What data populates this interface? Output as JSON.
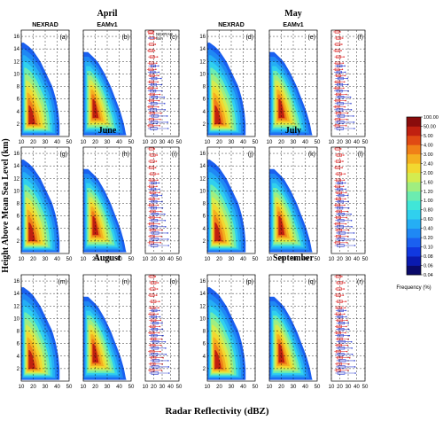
{
  "chart_data": {
    "type": "heatmap",
    "ylabel": "Height Above Mean Sea Level (km)",
    "xlabel": "Radar Reflectivity (dBZ)",
    "xlim": [
      10,
      50
    ],
    "ylim": [
      0,
      17
    ],
    "xticks": [
      "10",
      "20",
      "30",
      "40",
      "50"
    ],
    "yticks": [
      "2",
      "4",
      "6",
      "8",
      "10",
      "12",
      "14",
      "16"
    ],
    "source_labels": [
      "NEXRAD",
      "EAMv1"
    ],
    "legend": [
      {
        "name": "NEXRAD",
        "color": "#e03030"
      },
      {
        "name": "Sim",
        "color": "#3040d0"
      }
    ],
    "colorbar": {
      "title": "Frequency (%)",
      "levels": [
        "0.04",
        "0.06",
        "0.08",
        "0.10",
        "0.20",
        "0.40",
        "0.60",
        "0.80",
        "1.00",
        "1.20",
        "1.60",
        "2.00",
        "2.40",
        "3.00",
        "4.00",
        "5.00",
        "50.00",
        "100.00"
      ],
      "colors": [
        "#0a0a6a",
        "#0a1ab0",
        "#1038e0",
        "#1a60f0",
        "#1f88f4",
        "#25aef4",
        "#30d0ee",
        "#40e6d8",
        "#6cecb0",
        "#a0ee80",
        "#d4ec50",
        "#f2d830",
        "#f4b020",
        "#f08018",
        "#e04a14",
        "#c02010",
        "#8a0c0c"
      ]
    },
    "months": [
      {
        "name": "April",
        "panels": [
          "(a)",
          "(b)",
          "(c)"
        ]
      },
      {
        "name": "May",
        "panels": [
          "(d)",
          "(e)",
          "(f)"
        ]
      },
      {
        "name": "June",
        "panels": [
          "(g)",
          "(h)",
          "(i)"
        ]
      },
      {
        "name": "July",
        "panels": [
          "(j)",
          "(k)",
          "(l)"
        ]
      },
      {
        "name": "August",
        "panels": [
          "(m)",
          "(n)",
          "(o)"
        ]
      },
      {
        "name": "September",
        "panels": [
          "(p)",
          "(q)",
          "(r)"
        ]
      }
    ],
    "profiles": {
      "nexrad_top_km": 15.0,
      "eamv1_top_km": 13.5,
      "nexrad_max_dbz_at_height": [
        [
          0,
          42
        ],
        [
          2,
          42
        ],
        [
          4,
          41
        ],
        [
          6,
          39
        ],
        [
          8,
          36
        ],
        [
          10,
          31
        ],
        [
          12,
          26
        ],
        [
          14,
          19
        ],
        [
          15,
          12
        ]
      ],
      "eamv1_max_dbz_at_height": [
        [
          0,
          46
        ],
        [
          2,
          44
        ],
        [
          4,
          41
        ],
        [
          6,
          37
        ],
        [
          8,
          33
        ],
        [
          10,
          28
        ],
        [
          12,
          22
        ],
        [
          13.5,
          14
        ]
      ],
      "boxplot_heights_km": [
        1.5,
        2.5,
        3.5,
        4.5,
        5.5,
        6.5,
        7.5,
        8.5,
        9.5,
        10.5,
        11.5,
        12.5,
        13.5,
        14.5,
        15.5,
        16.5
      ]
    }
  }
}
